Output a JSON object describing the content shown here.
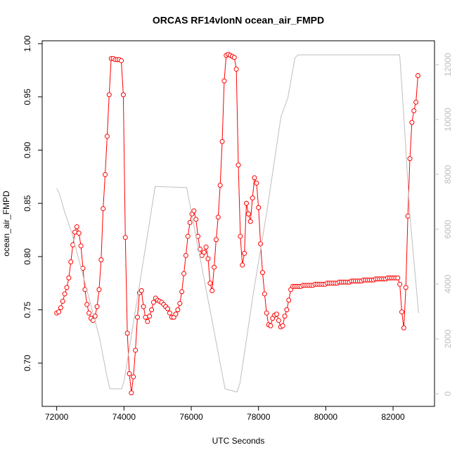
{
  "chart_data": {
    "type": "line",
    "title": "ORCAS RF14vlonN ocean_air_FMPD",
    "x_label": "UTC Seconds",
    "y_label": "ocean_air_FMPD",
    "xlim": [
      71568,
      83232
    ],
    "ylim": [
      0.6593,
      1.0027
    ],
    "y2lim": [
      -462,
      12872
    ],
    "xticks": [
      72000,
      74000,
      76000,
      78000,
      80000,
      82000
    ],
    "yticks": [
      {
        "value": 0.7,
        "label": "0.70"
      },
      0.75,
      {
        "value": 0.8,
        "label": "0.80"
      },
      0.85,
      {
        "value": 0.9,
        "label": "0.90"
      },
      0.95,
      {
        "value": 1.0,
        "label": "1.00"
      }
    ],
    "y2ticks": [
      0,
      2000,
      4000,
      6000,
      8000,
      10000,
      12000
    ],
    "series": [
      {
        "color": "#ff0000",
        "marker": "circle",
        "x": [
          72000,
          72060,
          72120,
          72180,
          72240,
          72300,
          72360,
          72420,
          72480,
          72540,
          72600,
          72660,
          72720,
          72780,
          72840,
          72900,
          72960,
          73020,
          73080,
          73140,
          73200,
          73260,
          73320,
          73380,
          73440,
          73500,
          73560,
          73620,
          73680,
          73740,
          73800,
          73860,
          73920,
          73980,
          74040,
          74100,
          74160,
          74220,
          74280,
          74340,
          74400,
          74460,
          74520,
          74580,
          74640,
          74700,
          74760,
          74820,
          74880,
          74940,
          75000,
          75060,
          75120,
          75180,
          75240,
          75300,
          75360,
          75420,
          75480,
          75540,
          75600,
          75660,
          75720,
          75780,
          75840,
          75900,
          75960,
          76020,
          76080,
          76140,
          76200,
          76260,
          76320,
          76380,
          76440,
          76500,
          76560,
          76620,
          76680,
          76740,
          76800,
          76860,
          76920,
          76980,
          77040,
          77100,
          77160,
          77220,
          77280,
          77340,
          77400,
          77460,
          77520,
          77580,
          77640,
          77700,
          77760,
          77820,
          77880,
          77940,
          78000,
          78060,
          78120,
          78180,
          78240,
          78300,
          78360,
          78420,
          78480,
          78540,
          78600,
          78660,
          78720,
          78780,
          78840,
          78900,
          78960,
          79020,
          79080,
          79140,
          79200,
          79260,
          79320,
          79380,
          79440,
          79500,
          79560,
          79620,
          79680,
          79740,
          79800,
          79860,
          79920,
          79980,
          80040,
          80100,
          80160,
          80220,
          80280,
          80340,
          80400,
          80460,
          80520,
          80580,
          80640,
          80700,
          80760,
          80820,
          80880,
          80940,
          81000,
          81060,
          81120,
          81180,
          81240,
          81300,
          81360,
          81420,
          81480,
          81540,
          81600,
          81660,
          81720,
          81780,
          81840,
          81900,
          81960,
          82020,
          82080,
          82140,
          82200,
          82260,
          82320,
          82380,
          82440,
          82500,
          82560,
          82620,
          82680,
          82740
        ],
        "values": [
          0.747,
          0.748,
          0.752,
          0.758,
          0.765,
          0.771,
          0.78,
          0.795,
          0.811,
          0.823,
          0.828,
          0.822,
          0.81,
          0.789,
          0.769,
          0.755,
          0.747,
          0.742,
          0.74,
          0.744,
          0.753,
          0.769,
          0.797,
          0.845,
          0.877,
          0.913,
          0.952,
          0.986,
          0.986,
          0.985,
          0.985,
          0.985,
          0.984,
          0.952,
          0.818,
          0.728,
          0.69,
          0.672,
          0.687,
          0.712,
          0.743,
          0.766,
          0.768,
          0.753,
          0.743,
          0.739,
          0.744,
          0.75,
          0.757,
          0.761,
          0.759,
          0.758,
          0.757,
          0.755,
          0.753,
          0.751,
          0.747,
          0.743,
          0.743,
          0.746,
          0.75,
          0.756,
          0.767,
          0.784,
          0.801,
          0.819,
          0.832,
          0.84,
          0.843,
          0.835,
          0.819,
          0.807,
          0.801,
          0.804,
          0.809,
          0.798,
          0.775,
          0.768,
          0.79,
          0.816,
          0.837,
          0.867,
          0.908,
          0.965,
          0.989,
          0.99,
          0.989,
          0.988,
          0.987,
          0.976,
          0.886,
          0.819,
          0.792,
          0.803,
          0.85,
          0.84,
          0.833,
          0.855,
          0.874,
          0.869,
          0.846,
          0.812,
          0.785,
          0.765,
          0.747,
          0.736,
          0.735,
          0.742,
          0.745,
          0.746,
          0.74,
          0.734,
          0.735,
          0.744,
          0.75,
          0.759,
          0.769,
          0.772,
          0.772,
          0.772,
          0.772,
          0.772,
          0.773,
          0.773,
          0.773,
          0.773,
          0.773,
          0.773,
          0.774,
          0.774,
          0.774,
          0.774,
          0.774,
          0.774,
          0.775,
          0.775,
          0.775,
          0.775,
          0.775,
          0.775,
          0.776,
          0.776,
          0.776,
          0.776,
          0.776,
          0.776,
          0.777,
          0.777,
          0.777,
          0.777,
          0.777,
          0.777,
          0.778,
          0.778,
          0.778,
          0.778,
          0.778,
          0.778,
          0.779,
          0.779,
          0.779,
          0.779,
          0.779,
          0.779,
          0.78,
          0.78,
          0.78,
          0.78,
          0.78,
          0.78,
          0.774,
          0.748,
          0.733,
          0.771,
          0.838,
          0.892,
          0.926,
          0.937,
          0.945,
          0.97
        ]
      },
      {
        "color": "#bebebe",
        "axis": "y2",
        "x": [
          72000,
          72080,
          72230,
          72440,
          73270,
          73500,
          73580,
          73930,
          74010,
          74928,
          75300,
          75863,
          77005,
          77358,
          77450,
          77836,
          78251,
          78667,
          78874,
          79081,
          79186,
          82197,
          82300,
          82500,
          82758
        ],
        "values": [
          7490,
          7300,
          6650,
          5900,
          2050,
          600,
          180,
          180,
          500,
          7560,
          7540,
          7520,
          180,
          60,
          400,
          3590,
          6670,
          10100,
          10800,
          12250,
          12360,
          12360,
          10500,
          6500,
          2950
        ]
      }
    ]
  }
}
